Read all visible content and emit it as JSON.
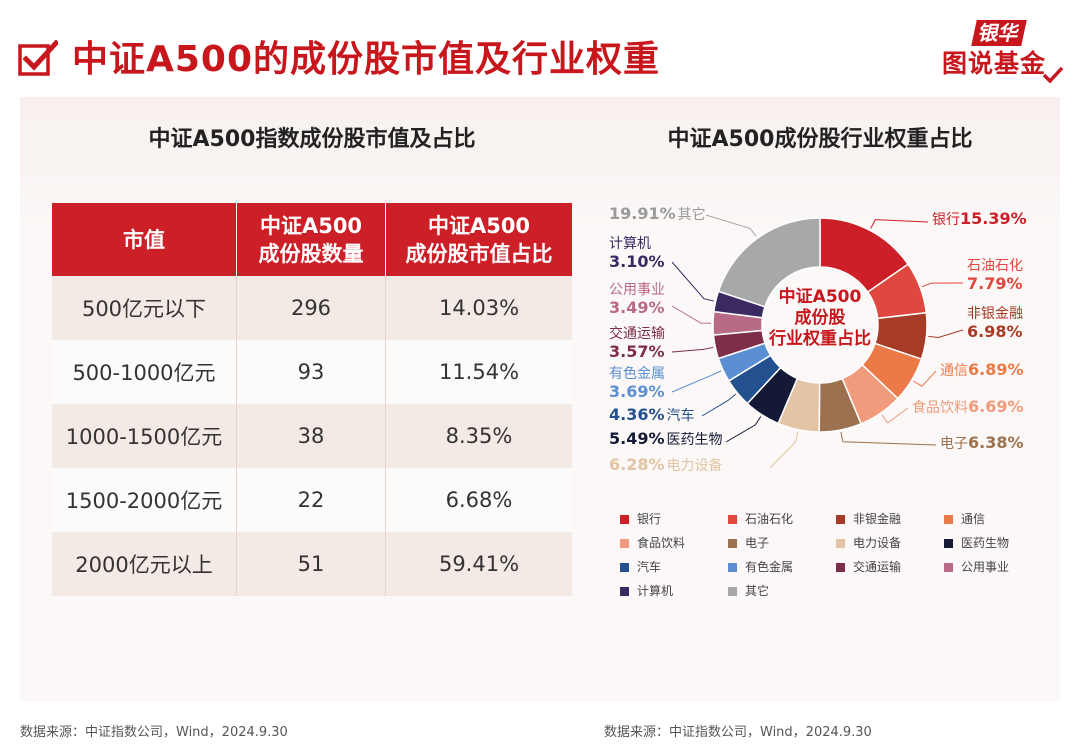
{
  "header": {
    "title": "中证A500的成份股市值及行业权重",
    "brand_top": "银华",
    "brand_bottom": "图说基金"
  },
  "left": {
    "title": "中证A500指数成份股市值及占比",
    "source": "数据来源：中证指数公司，Wind，2024.9.30"
  },
  "right": {
    "title": "中证A500成份股行业权重占比",
    "center_label": "中证A500\n成份股\n行业权重占比",
    "source": "数据来源：中证指数公司，Wind，2024.9.30"
  },
  "chart_data": [
    {
      "type": "table",
      "title": "中证A500指数成份股市值及占比",
      "columns": [
        "市值",
        "中证A500\n成份股数量",
        "中证A500\n成份股市值占比"
      ],
      "rows": [
        [
          "500亿元以下",
          "296",
          "14.03%"
        ],
        [
          "500-1000亿元",
          "93",
          "11.54%"
        ],
        [
          "1000-1500亿元",
          "38",
          "8.35%"
        ],
        [
          "1500-2000亿元",
          "22",
          "6.68%"
        ],
        [
          "2000亿元以上",
          "51",
          "59.41%"
        ]
      ]
    },
    {
      "type": "pie",
      "title": "中证A500成份股行业权重占比",
      "legend_position": "bottom",
      "slices": [
        {
          "label": "银行",
          "value": 15.39,
          "display": "15.39%",
          "color": "#cd1f27"
        },
        {
          "label": "石油石化",
          "value": 7.79,
          "display": "7.79%",
          "color": "#e0473f"
        },
        {
          "label": "非银金融",
          "value": 6.98,
          "display": "6.98%",
          "color": "#a83b25"
        },
        {
          "label": "通信",
          "value": 6.89,
          "display": "6.89%",
          "color": "#ec7a49"
        },
        {
          "label": "食品饮料",
          "value": 6.69,
          "display": "6.69%",
          "color": "#f09b7b"
        },
        {
          "label": "电子",
          "value": 6.38,
          "display": "6.38%",
          "color": "#9c7150"
        },
        {
          "label": "电力设备",
          "value": 6.28,
          "display": "6.28%",
          "color": "#e3c4a4"
        },
        {
          "label": "医药生物",
          "value": 5.49,
          "display": "5.49%",
          "color": "#141a35"
        },
        {
          "label": "汽车",
          "value": 4.36,
          "display": "4.36%",
          "color": "#23508f"
        },
        {
          "label": "有色金属",
          "value": 3.69,
          "display": "3.69%",
          "color": "#5b8fd1"
        },
        {
          "label": "交通运输",
          "value": 3.57,
          "display": "3.57%",
          "color": "#7e2e4b"
        },
        {
          "label": "公用事业",
          "value": 3.49,
          "display": "3.49%",
          "color": "#b86a86"
        },
        {
          "label": "计算机",
          "value": 3.1,
          "display": "3.10%",
          "color": "#3b2a62"
        },
        {
          "label": "其它",
          "value": 19.91,
          "display": "19.91%",
          "color": "#a8a8a8"
        }
      ]
    }
  ]
}
